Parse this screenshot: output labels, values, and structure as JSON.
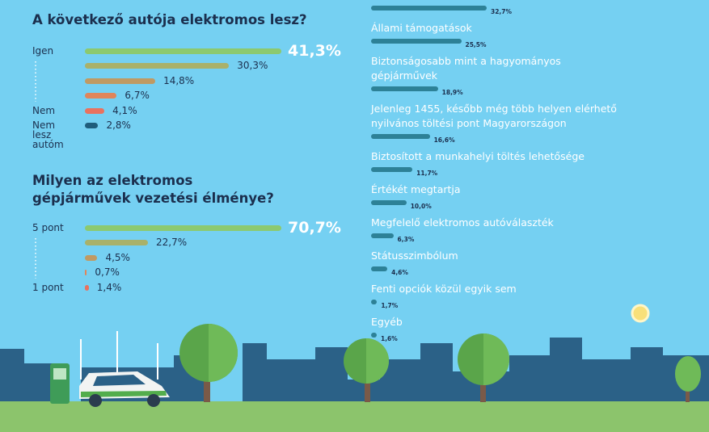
{
  "chart_data": [
    {
      "type": "hbar",
      "title": "A következő autója elektromos lesz?",
      "categories": [
        "Igen",
        null,
        null,
        null,
        "Nem",
        "Nem lesz autóm"
      ],
      "values": [
        41.3,
        30.3,
        14.8,
        6.7,
        4.1,
        2.8
      ],
      "value_labels": [
        "41,3%",
        "30,3%",
        "14,8%",
        "6,7%",
        "4,1%",
        "2,8%"
      ],
      "colors": [
        "#8cc96f",
        "#a9b16a",
        "#c09a63",
        "#e0855a",
        "#e9725f",
        "#1f5d7c"
      ]
    },
    {
      "type": "hbar",
      "title": "Milyen az elektromos gépjárművek vezetési élménye?",
      "categories": [
        "5 pont",
        null,
        null,
        null,
        "1 pont"
      ],
      "values": [
        70.7,
        22.7,
        4.5,
        0.7,
        1.4
      ],
      "value_labels": [
        "70,7%",
        "22,7%",
        "4,5%",
        "0,7%",
        "1,4%"
      ],
      "colors": [
        "#8cc96f",
        "#a9b16a",
        "#c09a63",
        "#e0855a",
        "#e9725f"
      ]
    },
    {
      "type": "hbar-list",
      "categories": [
        null,
        "Állami támogatások",
        "Biztonságosabb mint a hagyományos gépjárművek",
        "Jelenleg 1455, később még több helyen elérhető nyilvános töltési pont Magyarországon",
        "Biztosított a munkahelyi töltés lehetősége",
        "Értékét megtartja",
        "Megfelelő elektromos autóválaszték",
        "Státusszimbólum",
        "Fenti opciók közül egyik sem",
        "Egyéb"
      ],
      "values": [
        32.7,
        25.5,
        18.9,
        16.6,
        11.7,
        10.0,
        6.3,
        4.6,
        1.7,
        1.6
      ],
      "value_labels": [
        "32,7%",
        "25,5%",
        "18,9%",
        "16,6%",
        "11,7%",
        "10,0%",
        "6,3%",
        "4,6%",
        "1,7%",
        "1,6%"
      ],
      "color": "#2d8197"
    }
  ]
}
